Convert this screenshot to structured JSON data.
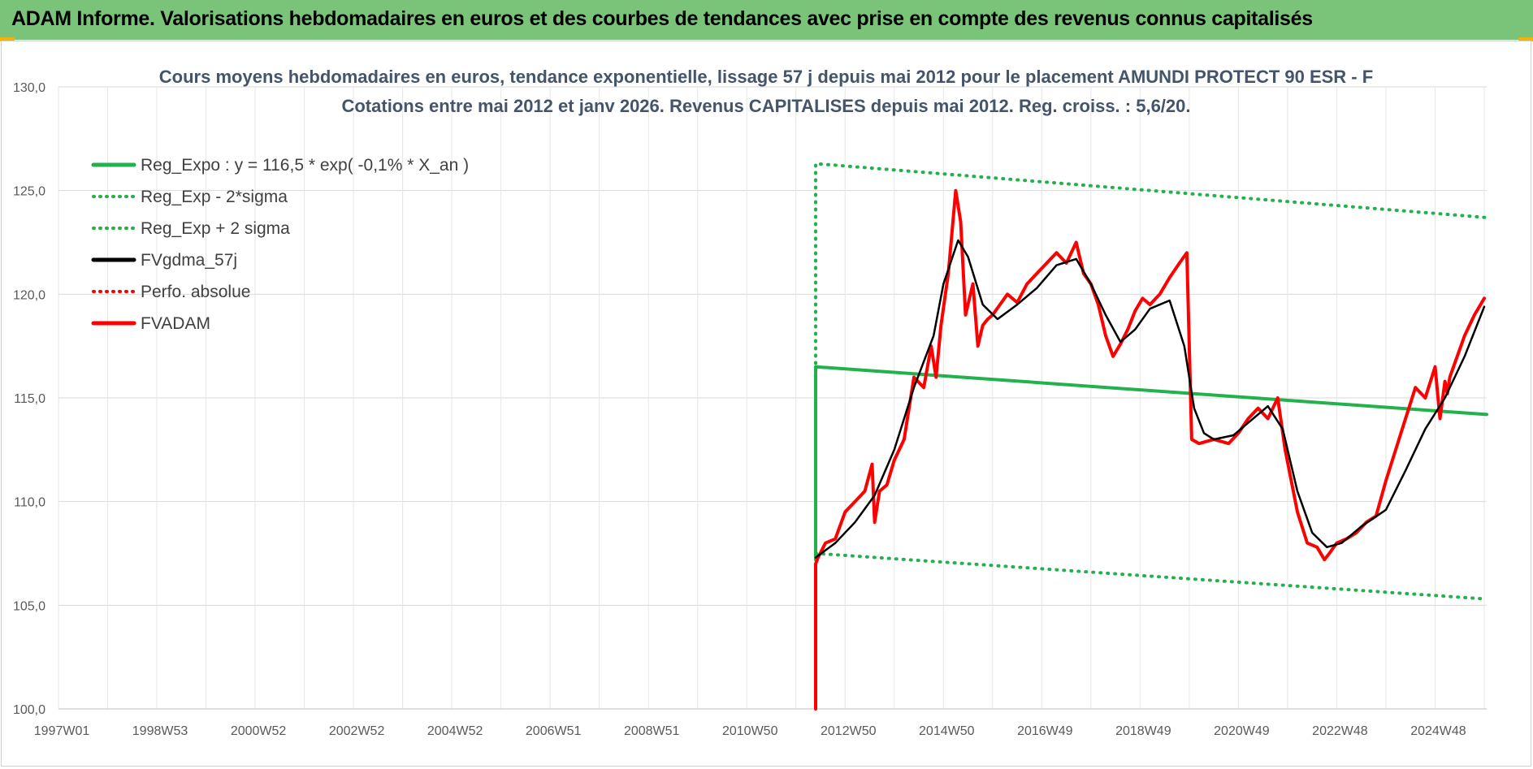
{
  "banner": {
    "title": "ADAM Informe. Valorisations hebdomadaires en euros et des courbes de tendances avec prise en compte des revenus connus capitalisés"
  },
  "chart_data": {
    "type": "line",
    "title": "Cours moyens hebdomadaires en euros, tendance exponentielle, lissage 57 j depuis mai 2012 pour le placement AMUNDI PROTECT 90 ESR - F",
    "subtitle": "Cotations entre mai 2012 et janv 2026. Revenus CAPITALISES depuis mai 2012. Reg. croiss. : 5,6/20.",
    "xlabel": "",
    "ylabel": "",
    "x_range": [
      1997.0,
      2026.05
    ],
    "ylim": [
      100,
      130
    ],
    "y_ticks": [
      "100,0",
      "105,0",
      "110,0",
      "115,0",
      "120,0",
      "125,0",
      "130,0"
    ],
    "x_ticks": [
      {
        "label": "1997W01",
        "x": 1997.0
      },
      {
        "label": "1998W53",
        "x": 1999.0
      },
      {
        "label": "2000W52",
        "x": 2001.0
      },
      {
        "label": "2002W52",
        "x": 2003.0
      },
      {
        "label": "2004W52",
        "x": 2005.0
      },
      {
        "label": "2006W51",
        "x": 2007.0
      },
      {
        "label": "2008W51",
        "x": 2009.0
      },
      {
        "label": "2010W50",
        "x": 2011.0
      },
      {
        "label": "2012W50",
        "x": 2013.0
      },
      {
        "label": "2014W50",
        "x": 2015.0
      },
      {
        "label": "2016W49",
        "x": 2017.0
      },
      {
        "label": "2018W49",
        "x": 2019.0
      },
      {
        "label": "2020W49",
        "x": 2021.0
      },
      {
        "label": "2022W48",
        "x": 2023.0
      },
      {
        "label": "2024W48",
        "x": 2025.0
      }
    ],
    "grid": true,
    "legend_position": "top-left",
    "series": [
      {
        "name": "Reg_Expo : y = 116,5 * exp( -0,1% *  X_an )",
        "color": "#22b14c",
        "style": "solid",
        "x": [
          2012.4,
          2012.4,
          2026.05
        ],
        "y": [
          107.2,
          116.5,
          114.2
        ]
      },
      {
        "name": "Reg_Exp - 2*sigma",
        "color": "#22b14c",
        "style": "dotted",
        "x": [
          2012.4,
          2026.05
        ],
        "y": [
          107.5,
          105.3
        ]
      },
      {
        "name": "Reg_Exp + 2 sigma",
        "color": "#22b14c",
        "style": "dotted",
        "x": [
          2012.4,
          2012.4,
          2026.05
        ],
        "y": [
          107.5,
          126.3,
          123.7
        ]
      },
      {
        "name": "FVgdma_57j",
        "color": "#000000",
        "style": "solid",
        "x": [
          2012.4,
          2012.8,
          2013.2,
          2013.6,
          2014.0,
          2014.4,
          2014.8,
          2015.0,
          2015.3,
          2015.5,
          2015.8,
          2016.1,
          2016.5,
          2016.9,
          2017.3,
          2017.7,
          2018.0,
          2018.3,
          2018.6,
          2018.9,
          2019.2,
          2019.6,
          2019.9,
          2020.1,
          2020.3,
          2020.5,
          2020.9,
          2021.2,
          2021.6,
          2021.9,
          2022.2,
          2022.5,
          2022.8,
          2023.1,
          2023.5,
          2024.0,
          2024.4,
          2024.8,
          2025.2,
          2025.6,
          2026.0
        ],
        "y": [
          107.3,
          108.0,
          109.0,
          110.3,
          112.5,
          115.5,
          118.0,
          120.5,
          122.6,
          121.8,
          119.5,
          118.8,
          119.5,
          120.3,
          121.4,
          121.7,
          120.5,
          119.0,
          117.7,
          118.3,
          119.3,
          119.7,
          117.5,
          114.5,
          113.3,
          113.0,
          113.2,
          113.8,
          114.6,
          113.5,
          110.5,
          108.5,
          107.8,
          108.0,
          108.8,
          109.6,
          111.5,
          113.5,
          115.0,
          117.0,
          119.4
        ]
      },
      {
        "name": "Perfo. absolue",
        "color": "#ff0000",
        "style": "dotted",
        "x": [],
        "y": []
      },
      {
        "name": "FVADAM",
        "color": "#ff0000",
        "style": "solid",
        "x": [
          2012.4,
          2012.4,
          2012.45,
          2012.6,
          2012.8,
          2013.0,
          2013.2,
          2013.4,
          2013.55,
          2013.6,
          2013.7,
          2013.85,
          2014.0,
          2014.2,
          2014.4,
          2014.6,
          2014.75,
          2014.85,
          2014.95,
          2015.1,
          2015.25,
          2015.35,
          2015.45,
          2015.6,
          2015.7,
          2015.8,
          2015.9,
          2016.0,
          2016.15,
          2016.3,
          2016.5,
          2016.7,
          2016.9,
          2017.1,
          2017.3,
          2017.5,
          2017.7,
          2017.85,
          2018.0,
          2018.15,
          2018.3,
          2018.45,
          2018.6,
          2018.75,
          2018.9,
          2019.05,
          2019.2,
          2019.4,
          2019.6,
          2019.8,
          2019.95,
          2020.0,
          2020.05,
          2020.2,
          2020.5,
          2020.8,
          2021.0,
          2021.2,
          2021.4,
          2021.6,
          2021.8,
          2021.95,
          2022.2,
          2022.4,
          2022.6,
          2022.75,
          2022.85,
          2023.0,
          2023.2,
          2023.4,
          2023.6,
          2023.8,
          2024.0,
          2024.2,
          2024.4,
          2024.6,
          2024.8,
          2025.0,
          2025.1,
          2025.2,
          2025.25,
          2025.3,
          2025.45,
          2025.6,
          2025.8,
          2026.0
        ],
        "y": [
          100.0,
          107.0,
          107.3,
          108.0,
          108.2,
          109.5,
          110.0,
          110.5,
          111.8,
          109.0,
          110.5,
          110.8,
          112.0,
          113.0,
          116.0,
          115.5,
          117.5,
          116.0,
          118.5,
          121.0,
          125.0,
          123.5,
          119.0,
          120.5,
          117.5,
          118.5,
          118.8,
          119.0,
          119.5,
          120.0,
          119.6,
          120.5,
          121.0,
          121.5,
          122.0,
          121.5,
          122.5,
          121.0,
          120.5,
          119.5,
          118.0,
          117.0,
          117.6,
          118.3,
          119.2,
          119.8,
          119.5,
          120.0,
          120.8,
          121.5,
          122.0,
          117.5,
          113.0,
          112.8,
          113.0,
          112.8,
          113.3,
          114.0,
          114.5,
          114.0,
          115.0,
          112.5,
          109.5,
          108.0,
          107.8,
          107.2,
          107.5,
          108.0,
          108.2,
          108.5,
          109.0,
          109.3,
          111.0,
          112.5,
          114.0,
          115.5,
          115.0,
          116.5,
          114.0,
          115.8,
          115.2,
          116.0,
          117.0,
          118.0,
          119.0,
          119.8
        ]
      }
    ]
  }
}
